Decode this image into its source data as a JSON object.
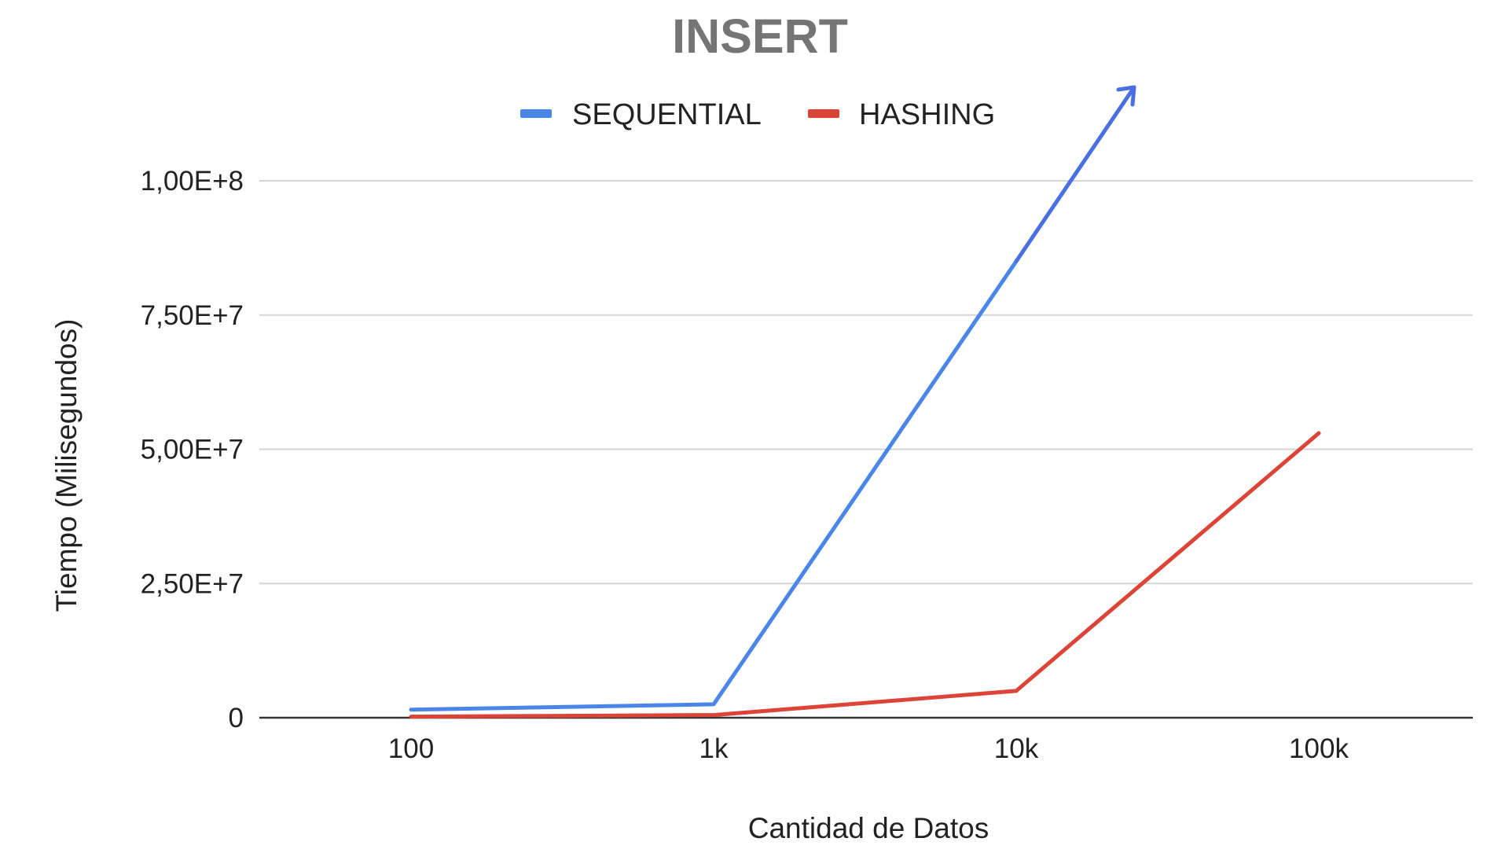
{
  "colors": {
    "sequential": "#4a86e8",
    "hashing": "#db4437",
    "title": "#757575",
    "text": "#222222",
    "grid": "#d6d6d6",
    "axis": "#333333"
  },
  "chart_data": {
    "type": "line",
    "title": "INSERT",
    "xlabel": "Cantidad de Datos",
    "ylabel": "Tiempo (Milisegundos)",
    "categories": [
      "100",
      "1k",
      "10k",
      "100k"
    ],
    "ylim": [
      0,
      100000000
    ],
    "yticks": [
      {
        "value": 0,
        "label": "0"
      },
      {
        "value": 25000000,
        "label": "2,50E+7"
      },
      {
        "value": 50000000,
        "label": "5,00E+7"
      },
      {
        "value": 75000000,
        "label": "7,50E+7"
      },
      {
        "value": 100000000,
        "label": "1,00E+8"
      }
    ],
    "grid": true,
    "legend_position": "top",
    "series": [
      {
        "name": "SEQUENTIAL",
        "color_key": "sequential",
        "values": [
          1500000,
          2500000,
          85000000,
          null
        ],
        "note_visible": "line continues above the plot area toward 100k"
      },
      {
        "name": "HASHING",
        "color_key": "hashing",
        "values": [
          200000,
          500000,
          5000000,
          53000000
        ]
      }
    ],
    "annotations": [
      {
        "type": "arrow",
        "series": "SEQUENTIAL",
        "direction": "up-right"
      }
    ]
  }
}
